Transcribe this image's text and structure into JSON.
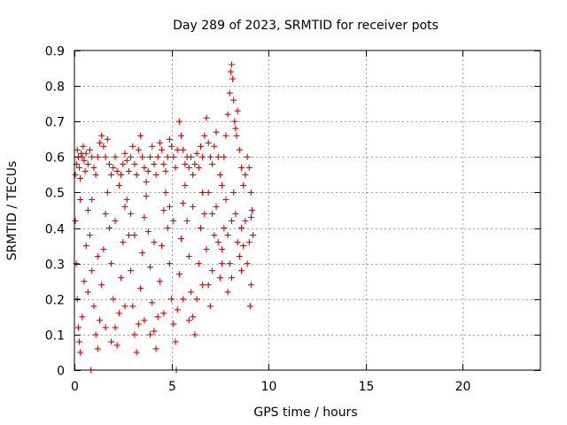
{
  "chart_data": {
    "type": "scatter",
    "title": "Day 289 of 2023, SRMTID for receiver pots",
    "xlabel": "GPS time / hours",
    "ylabel": "SRMTID / TECUs",
    "xlim": [
      0,
      24
    ],
    "ylim": [
      0,
      0.9
    ],
    "x_ticks": [
      0,
      5,
      10,
      15,
      20
    ],
    "x_tick_labels": [
      "0",
      "5",
      "10",
      "15",
      "20"
    ],
    "y_ticks": [
      0,
      0.1,
      0.2,
      0.3,
      0.4,
      0.5,
      0.6,
      0.7,
      0.8,
      0.9
    ],
    "y_tick_labels": [
      "0",
      "0.1",
      "0.2",
      "0.3",
      "0.4",
      "0.5",
      "0.6",
      "0.7",
      "0.8",
      "0.9"
    ],
    "grid": true,
    "marker": "+",
    "color": "#e00000",
    "series": [
      {
        "name": "SRMTID",
        "points": [
          [
            0.05,
            0.55
          ],
          [
            0.1,
            0.58
          ],
          [
            0.15,
            0.62
          ],
          [
            0.2,
            0.6
          ],
          [
            0.25,
            0.57
          ],
          [
            0.3,
            0.54
          ],
          [
            0.35,
            0.61
          ],
          [
            0.4,
            0.6
          ],
          [
            0.45,
            0.63
          ],
          [
            0.5,
            0.59
          ],
          [
            0.55,
            0.56
          ],
          [
            0.6,
            0.61
          ],
          [
            0.7,
            0.58
          ],
          [
            0.8,
            0.62
          ],
          [
            0.9,
            0.6
          ],
          [
            1.0,
            0.57
          ],
          [
            1.1,
            0.55
          ],
          [
            1.2,
            0.6
          ],
          [
            1.3,
            0.64
          ],
          [
            1.4,
            0.66
          ],
          [
            1.5,
            0.63
          ],
          [
            1.6,
            0.6
          ],
          [
            1.7,
            0.65
          ],
          [
            1.8,
            0.58
          ],
          [
            1.9,
            0.55
          ],
          [
            2.0,
            0.57
          ],
          [
            2.1,
            0.6
          ],
          [
            2.2,
            0.56
          ],
          [
            2.3,
            0.52
          ],
          [
            2.4,
            0.55
          ],
          [
            2.5,
            0.58
          ],
          [
            2.6,
            0.61
          ],
          [
            2.7,
            0.59
          ],
          [
            2.8,
            0.56
          ],
          [
            2.9,
            0.6
          ],
          [
            3.0,
            0.63
          ],
          [
            3.1,
            0.58
          ],
          [
            3.2,
            0.55
          ],
          [
            3.3,
            0.62
          ],
          [
            3.4,
            0.66
          ],
          [
            3.5,
            0.6
          ],
          [
            3.6,
            0.57
          ],
          [
            3.7,
            0.53
          ],
          [
            3.8,
            0.56
          ],
          [
            3.9,
            0.6
          ],
          [
            4.0,
            0.63
          ],
          [
            4.1,
            0.58
          ],
          [
            4.2,
            0.55
          ],
          [
            4.3,
            0.6
          ],
          [
            4.4,
            0.64
          ],
          [
            4.5,
            0.62
          ],
          [
            4.6,
            0.58
          ],
          [
            4.7,
            0.56
          ],
          [
            4.8,
            0.6
          ],
          [
            4.9,
            0.65
          ],
          [
            5.0,
            0.63
          ],
          [
            5.1,
            0.6
          ],
          [
            5.2,
            0.57
          ],
          [
            5.3,
            0.62
          ],
          [
            5.4,
            0.7
          ],
          [
            5.5,
            0.66
          ],
          [
            5.6,
            0.62
          ],
          [
            5.7,
            0.58
          ],
          [
            5.8,
            0.6
          ],
          [
            5.9,
            0.57
          ],
          [
            6.0,
            0.6
          ],
          [
            6.1,
            0.55
          ],
          [
            6.2,
            0.58
          ],
          [
            6.3,
            0.61
          ],
          [
            6.4,
            0.57
          ],
          [
            6.5,
            0.63
          ],
          [
            6.6,
            0.6
          ],
          [
            6.7,
            0.66
          ],
          [
            6.8,
            0.71
          ],
          [
            6.9,
            0.64
          ],
          [
            7.0,
            0.6
          ],
          [
            7.1,
            0.58
          ],
          [
            7.2,
            0.63
          ],
          [
            7.3,
            0.67
          ],
          [
            7.4,
            0.6
          ],
          [
            7.5,
            0.55
          ],
          [
            7.6,
            0.52
          ],
          [
            7.7,
            0.6
          ],
          [
            7.8,
            0.66
          ],
          [
            7.9,
            0.72
          ],
          [
            8.0,
            0.78
          ],
          [
            8.05,
            0.84
          ],
          [
            8.1,
            0.86
          ],
          [
            8.15,
            0.82
          ],
          [
            8.2,
            0.76
          ],
          [
            8.25,
            0.7
          ],
          [
            8.3,
            0.68
          ],
          [
            8.35,
            0.66
          ],
          [
            8.4,
            0.73
          ],
          [
            8.5,
            0.62
          ],
          [
            8.6,
            0.57
          ],
          [
            8.7,
            0.52
          ],
          [
            8.8,
            0.55
          ],
          [
            8.9,
            0.6
          ],
          [
            9.0,
            0.57
          ],
          [
            9.1,
            0.5
          ],
          [
            9.15,
            0.45
          ],
          [
            9.2,
            0.38
          ],
          [
            9.1,
            0.24
          ],
          [
            9.05,
            0.18
          ],
          [
            0.05,
            0.42
          ],
          [
            0.1,
            0.3
          ],
          [
            0.15,
            0.2
          ],
          [
            0.2,
            0.12
          ],
          [
            0.25,
            0.08
          ],
          [
            0.3,
            0.05
          ],
          [
            0.4,
            0.15
          ],
          [
            0.5,
            0.25
          ],
          [
            0.6,
            0.35
          ],
          [
            0.7,
            0.45
          ],
          [
            0.8,
            0.38
          ],
          [
            0.9,
            0.28
          ],
          [
            1.0,
            0.18
          ],
          [
            1.1,
            0.1
          ],
          [
            1.2,
            0.06
          ],
          [
            1.3,
            0.14
          ],
          [
            1.4,
            0.24
          ],
          [
            1.5,
            0.34
          ],
          [
            1.6,
            0.44
          ],
          [
            1.7,
            0.5
          ],
          [
            1.8,
            0.4
          ],
          [
            1.9,
            0.3
          ],
          [
            2.0,
            0.2
          ],
          [
            2.1,
            0.12
          ],
          [
            2.2,
            0.07
          ],
          [
            2.3,
            0.16
          ],
          [
            2.4,
            0.26
          ],
          [
            2.5,
            0.36
          ],
          [
            2.6,
            0.46
          ],
          [
            2.7,
            0.48
          ],
          [
            2.8,
            0.38
          ],
          [
            2.9,
            0.28
          ],
          [
            3.0,
            0.18
          ],
          [
            3.1,
            0.1
          ],
          [
            3.2,
            0.05
          ],
          [
            3.3,
            0.13
          ],
          [
            3.4,
            0.23
          ],
          [
            3.5,
            0.33
          ],
          [
            3.6,
            0.43
          ],
          [
            3.7,
            0.49
          ],
          [
            3.8,
            0.39
          ],
          [
            3.9,
            0.29
          ],
          [
            4.0,
            0.19
          ],
          [
            4.1,
            0.11
          ],
          [
            4.2,
            0.06
          ],
          [
            4.3,
            0.15
          ],
          [
            4.4,
            0.25
          ],
          [
            4.5,
            0.35
          ],
          [
            4.6,
            0.45
          ],
          [
            4.7,
            0.5
          ],
          [
            4.8,
            0.4
          ],
          [
            4.9,
            0.3
          ],
          [
            5.0,
            0.2
          ],
          [
            5.1,
            0.13
          ],
          [
            5.2,
            0.08
          ],
          [
            5.3,
            0.17
          ],
          [
            5.4,
            0.27
          ],
          [
            5.5,
            0.37
          ],
          [
            5.6,
            0.47
          ],
          [
            5.7,
            0.52
          ],
          [
            5.8,
            0.42
          ],
          [
            5.9,
            0.32
          ],
          [
            6.0,
            0.22
          ],
          [
            6.1,
            0.15
          ],
          [
            6.2,
            0.1
          ],
          [
            6.3,
            0.2
          ],
          [
            6.4,
            0.3
          ],
          [
            6.5,
            0.4
          ],
          [
            6.6,
            0.5
          ],
          [
            6.7,
            0.44
          ],
          [
            6.8,
            0.34
          ],
          [
            6.9,
            0.24
          ],
          [
            7.0,
            0.18
          ],
          [
            7.1,
            0.28
          ],
          [
            7.2,
            0.38
          ],
          [
            7.3,
            0.46
          ],
          [
            7.4,
            0.36
          ],
          [
            7.5,
            0.26
          ],
          [
            7.6,
            0.3
          ],
          [
            7.7,
            0.4
          ],
          [
            7.8,
            0.48
          ],
          [
            7.9,
            0.38
          ],
          [
            8.0,
            0.3
          ],
          [
            8.1,
            0.42
          ],
          [
            8.2,
            0.5
          ],
          [
            8.3,
            0.44
          ],
          [
            8.4,
            0.36
          ],
          [
            8.5,
            0.32
          ],
          [
            8.6,
            0.28
          ],
          [
            8.7,
            0.35
          ],
          [
            8.8,
            0.42
          ],
          [
            8.9,
            0.3
          ],
          [
            9.0,
            0.36
          ],
          [
            9.1,
            0.43
          ],
          [
            0.3,
            0.48
          ],
          [
            0.7,
            0.22
          ],
          [
            1.2,
            0.32
          ],
          [
            1.6,
            0.12
          ],
          [
            2.1,
            0.42
          ],
          [
            2.6,
            0.18
          ],
          [
            3.1,
            0.38
          ],
          [
            3.6,
            0.14
          ],
          [
            4.1,
            0.36
          ],
          [
            4.6,
            0.16
          ],
          [
            5.1,
            0.42
          ],
          [
            5.6,
            0.2
          ],
          [
            6.1,
            0.46
          ],
          [
            6.6,
            0.24
          ],
          [
            7.1,
            0.44
          ],
          [
            7.6,
            0.34
          ],
          [
            8.1,
            0.26
          ],
          [
            8.6,
            0.4
          ],
          [
            0.9,
            0.48
          ],
          [
            1.9,
            0.08
          ],
          [
            2.9,
            0.44
          ],
          [
            3.9,
            0.1
          ],
          [
            4.9,
            0.46
          ],
          [
            5.9,
            0.14
          ],
          [
            6.9,
            0.5
          ],
          [
            7.9,
            0.22
          ],
          [
            0.85,
            0
          ],
          [
            5.25,
            0
          ]
        ]
      }
    ]
  }
}
